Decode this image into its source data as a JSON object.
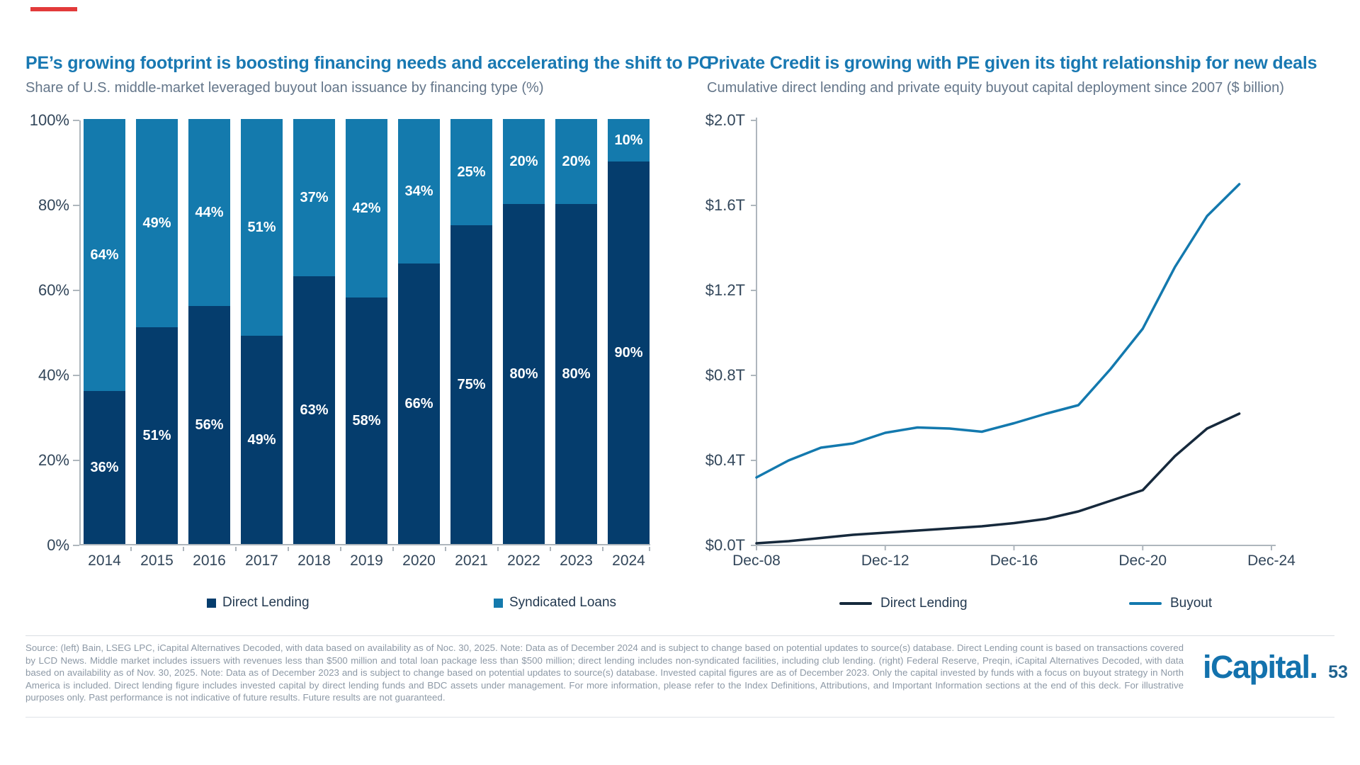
{
  "slide": {
    "background": "#ffffff",
    "accent_color": "#e23a3a"
  },
  "chart_data": [
    {
      "type": "bar",
      "stacked": true,
      "title": "PE’s growing footprint is boosting financing needs and accelerating the shift to PC",
      "subtitle": "Share of U.S. middle-market leveraged buyout loan issuance by financing type (%)",
      "categories": [
        "2014",
        "2015",
        "2016",
        "2017",
        "2018",
        "2019",
        "2020",
        "2021",
        "2022",
        "2023",
        "2024"
      ],
      "series": [
        {
          "name": "Direct Lending",
          "color": "#053d6d",
          "values": [
            36,
            51,
            56,
            49,
            63,
            58,
            66,
            75,
            80,
            80,
            90
          ]
        },
        {
          "name": "Syndicated Loans",
          "color": "#147aad",
          "values": [
            64,
            49,
            44,
            51,
            37,
            42,
            34,
            25,
            20,
            20,
            10
          ]
        }
      ],
      "value_label_suffix": "%",
      "ylim": [
        0,
        100
      ],
      "y_ticks": [
        "100%",
        "80%",
        "60%",
        "40%",
        "20%",
        "0%"
      ],
      "grid": false,
      "legend_position": "bottom"
    },
    {
      "type": "line",
      "title": "Private Credit is growing with PE given its tight relationship for new deals",
      "subtitle": "Cumulative direct lending and private equity buyout capital deployment since 2007 ($ billion)",
      "x": [
        2008,
        2009,
        2010,
        2011,
        2012,
        2013,
        2014,
        2015,
        2016,
        2017,
        2018,
        2019,
        2020,
        2021,
        2022,
        2023
      ],
      "x_ticks": [
        "Dec-08",
        "Dec-12",
        "Dec-16",
        "Dec-20",
        "Dec-24"
      ],
      "y_ticks": [
        "$2.0T",
        "$1.6T",
        "$1.2T",
        "$0.8T",
        "$0.4T",
        "$0.0T"
      ],
      "ylim": [
        0,
        2.0
      ],
      "series": [
        {
          "name": "Direct Lending",
          "color": "#16293c",
          "values": [
            0.01,
            0.02,
            0.035,
            0.05,
            0.06,
            0.07,
            0.08,
            0.09,
            0.105,
            0.125,
            0.16,
            0.21,
            0.26,
            0.42,
            0.55,
            0.62
          ]
        },
        {
          "name": "Buyout",
          "color": "#1379ae",
          "values": [
            0.32,
            0.4,
            0.46,
            0.48,
            0.53,
            0.555,
            0.55,
            0.535,
            0.575,
            0.62,
            0.66,
            0.83,
            1.02,
            1.31,
            1.55,
            1.7
          ]
        }
      ],
      "grid": false,
      "legend_position": "bottom"
    }
  ],
  "footer": {
    "source_text": "Source: (left) Bain, LSEG LPC, iCapital Alternatives Decoded, with data based on availability as of Noc. 30, 2025. Note: Data as of December 2024 and is subject to change based on potential updates to source(s) database. Direct Lending count is based on transactions covered by LCD News. Middle market includes issuers with revenues less than $500 million and total loan package less than $500 million; direct lending includes non-syndicated facilities, including club lending. (right) Federal Reserve, Preqin, iCapital Alternatives Decoded, with data based on availability as of Nov. 30, 2025. Note: Data as of December 2023 and is subject to change based on potential updates to source(s) database. Invested capital figures are as of December 2023. Only the capital invested by funds with a focus on buyout strategy in North America is included. Direct lending figure includes invested capital by direct lending funds and BDC assets under management. For more information, please refer to the Index Definitions, Attributions, and Important Information sections at the end of this deck. For illustrative purposes only. Past performance is not indicative of future results. Future results are not guaranteed.",
    "logo_text": "iCapital",
    "logo_dot": ".",
    "page_number": "53"
  }
}
